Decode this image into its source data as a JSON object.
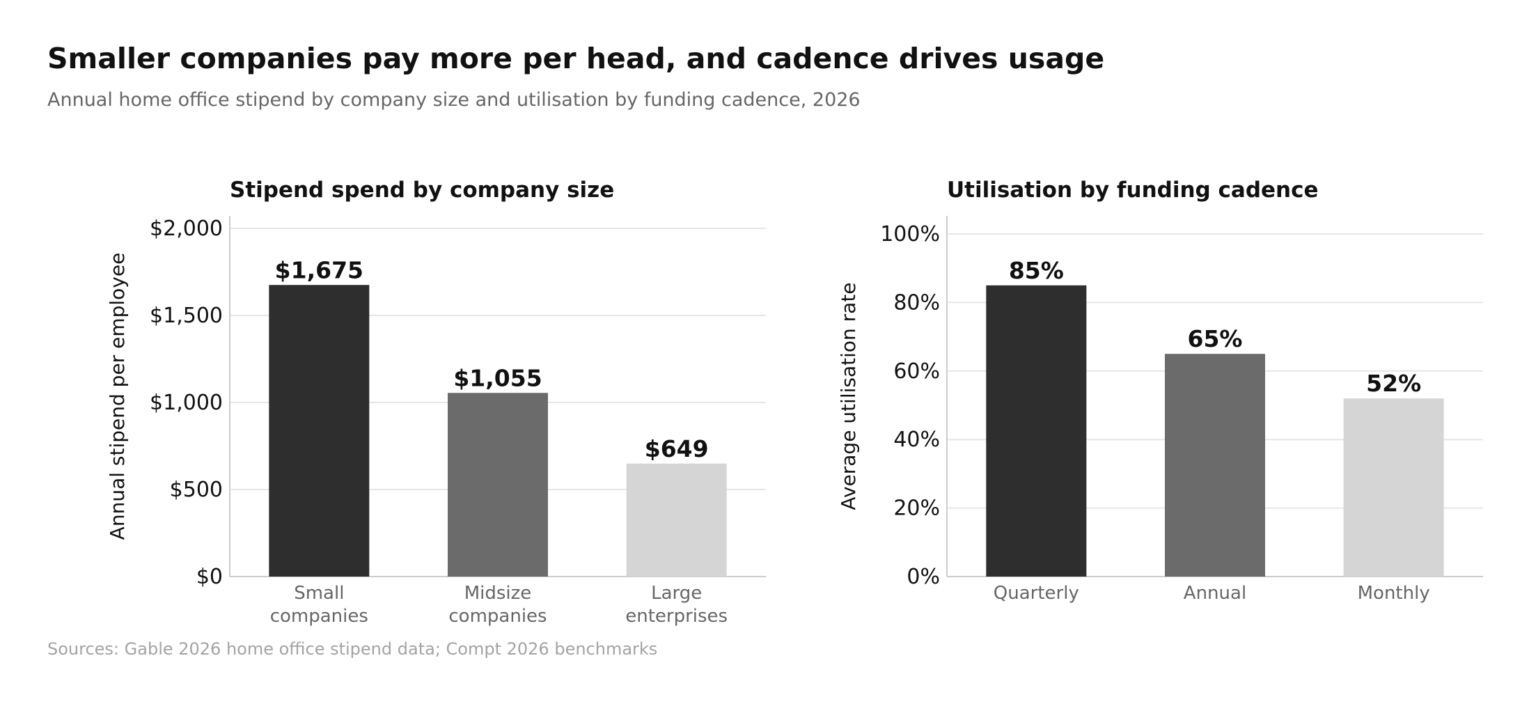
{
  "header": {
    "title": "Smaller companies pay more per head, and cadence drives usage",
    "subtitle": "Annual home office stipend by company size and utilisation by funding cadence, 2026"
  },
  "footer": {
    "source": "Sources: Gable 2026 home office stipend data; Compt 2026 benchmarks"
  },
  "colors": {
    "bar_dark": "#2e2e2e",
    "bar_mid": "#6b6b6b",
    "bar_light": "#d5d5d5",
    "grid": "#e6e6e6",
    "axis": "#cccccc"
  },
  "chart_data": [
    {
      "type": "bar",
      "title": "Stipend spend by company size",
      "ylabel": "Annual stipend per employee",
      "categories": [
        [
          "Small",
          "companies"
        ],
        [
          "Midsize",
          "companies"
        ],
        [
          "Large",
          "enterprises"
        ]
      ],
      "values": [
        1675,
        1055,
        649
      ],
      "data_labels": [
        "$1,675",
        "$1,055",
        "$649"
      ],
      "ylim": [
        0,
        2000
      ],
      "yticks": [
        0,
        500,
        1000,
        1500,
        2000
      ],
      "ytick_labels": [
        "$0",
        "$500",
        "$1,000",
        "$1,500",
        "$2,000"
      ],
      "bar_colors": [
        "#2e2e2e",
        "#6b6b6b",
        "#d5d5d5"
      ],
      "grid": true
    },
    {
      "type": "bar",
      "title": "Utilisation by funding cadence",
      "ylabel": "Average utilisation rate",
      "categories": [
        [
          "Quarterly"
        ],
        [
          "Annual"
        ],
        [
          "Monthly"
        ]
      ],
      "values": [
        85,
        65,
        52
      ],
      "data_labels": [
        "85%",
        "65%",
        "52%"
      ],
      "ylim": [
        0,
        100
      ],
      "yticks": [
        0,
        20,
        40,
        60,
        80,
        100
      ],
      "ytick_labels": [
        "0%",
        "20%",
        "40%",
        "60%",
        "80%",
        "100%"
      ],
      "bar_colors": [
        "#2e2e2e",
        "#6b6b6b",
        "#d5d5d5"
      ],
      "grid": true
    }
  ]
}
